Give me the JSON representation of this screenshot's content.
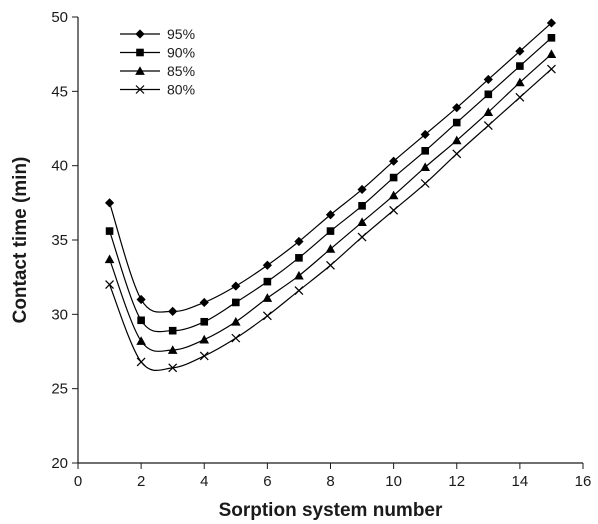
{
  "chart_data": {
    "type": "line",
    "title": "",
    "xlabel": "Sorption system number",
    "ylabel": "Contact time (min)",
    "xlim": [
      0,
      16
    ],
    "ylim": [
      20,
      50
    ],
    "xticks": [
      0,
      2,
      4,
      6,
      8,
      10,
      12,
      14,
      16
    ],
    "yticks": [
      20,
      25,
      30,
      35,
      40,
      45,
      50
    ],
    "grid": false,
    "legend_position": "top-left",
    "smooth": true,
    "x": [
      1,
      2,
      3,
      4,
      5,
      6,
      7,
      8,
      9,
      10,
      11,
      12,
      13,
      14,
      15
    ],
    "series": [
      {
        "name": "95%",
        "marker": "diamond",
        "values": [
          37.5,
          31.0,
          30.2,
          30.8,
          31.9,
          33.3,
          34.9,
          36.7,
          38.4,
          40.3,
          42.1,
          43.9,
          45.8,
          47.7,
          49.6
        ]
      },
      {
        "name": "90%",
        "marker": "square",
        "values": [
          35.6,
          29.6,
          28.9,
          29.5,
          30.8,
          32.2,
          33.8,
          35.6,
          37.3,
          39.2,
          41.0,
          42.9,
          44.8,
          46.7,
          48.6
        ]
      },
      {
        "name": "85%",
        "marker": "triangle",
        "values": [
          33.7,
          28.2,
          27.6,
          28.3,
          29.5,
          31.1,
          32.6,
          34.4,
          36.2,
          38.0,
          39.9,
          41.7,
          43.6,
          45.6,
          47.5
        ]
      },
      {
        "name": "80%",
        "marker": "x",
        "values": [
          32.0,
          26.8,
          26.4,
          27.2,
          28.4,
          29.9,
          31.6,
          33.3,
          35.2,
          37.0,
          38.8,
          40.8,
          42.7,
          44.6,
          46.5
        ]
      }
    ]
  }
}
